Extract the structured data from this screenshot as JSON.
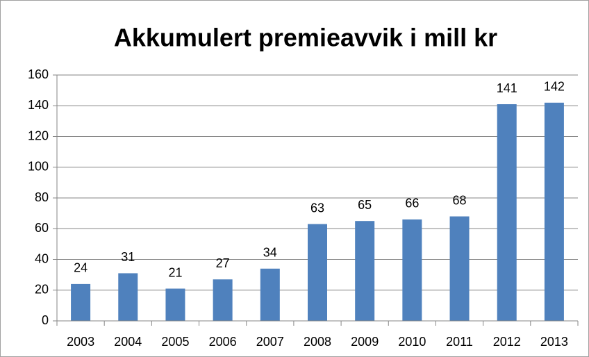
{
  "chart_data": {
    "type": "bar",
    "title": "Akkumulert premieavvik i mill kr",
    "categories": [
      "2003",
      "2004",
      "2005",
      "2006",
      "2007",
      "2008",
      "2009",
      "2010",
      "2011",
      "2012",
      "2013"
    ],
    "values": [
      24,
      31,
      21,
      27,
      34,
      63,
      65,
      66,
      68,
      141,
      142
    ],
    "color": "#4f81bd",
    "ylim": [
      0,
      160
    ],
    "yticks": [
      0,
      20,
      40,
      60,
      80,
      100,
      120,
      140,
      160
    ],
    "grid": true
  }
}
